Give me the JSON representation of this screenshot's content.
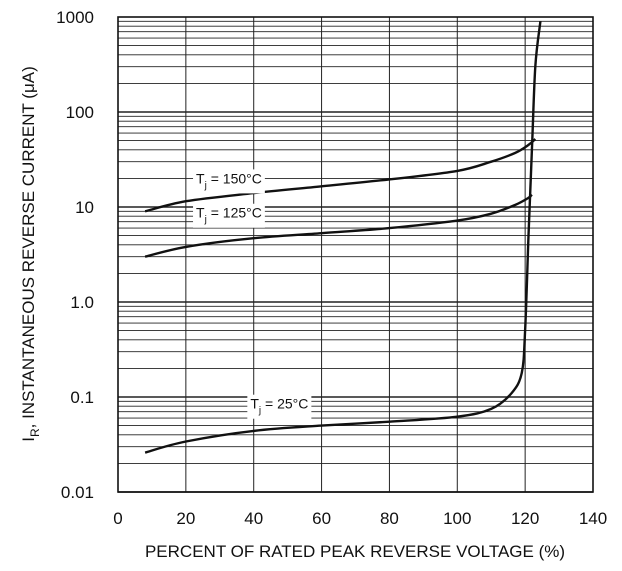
{
  "chart_data": {
    "type": "line",
    "title": "",
    "xlabel": "PERCENT OF RATED PEAK REVERSE VOLTAGE (%)",
    "ylabel_main": "I",
    "ylabel_sub": "R",
    "ylabel_rest": ", INSTANTANEOUS REVERSE CURRENT (μA)",
    "xlim": [
      0,
      140
    ],
    "ylim": [
      0.01,
      1000
    ],
    "yscale": "log",
    "grid": true,
    "x_ticks": [
      {
        "value": 0,
        "label": "0"
      },
      {
        "value": 20,
        "label": "20"
      },
      {
        "value": 40,
        "label": "40"
      },
      {
        "value": 60,
        "label": "60"
      },
      {
        "value": 80,
        "label": "80"
      },
      {
        "value": 100,
        "label": "100"
      },
      {
        "value": 120,
        "label": "120"
      },
      {
        "value": 140,
        "label": "140"
      }
    ],
    "y_ticks": [
      {
        "value": 0.01,
        "label": "0.01"
      },
      {
        "value": 0.1,
        "label": "0.1"
      },
      {
        "value": 1,
        "label": "1.0"
      },
      {
        "value": 10,
        "label": "10"
      },
      {
        "value": 100,
        "label": "100"
      },
      {
        "value": 1000,
        "label": "1000"
      }
    ],
    "series": [
      {
        "label_main": "T",
        "label_sub": "j",
        "label_rest": " = 150°C",
        "label_anchor": [
          23,
          20
        ],
        "x": [
          8,
          20,
          40,
          60,
          80,
          100,
          110,
          117,
          121,
          123
        ],
        "y": [
          9.0,
          11.5,
          14,
          16.5,
          19.5,
          24,
          30,
          37,
          45,
          52
        ]
      },
      {
        "label_main": "T",
        "label_sub": "j",
        "label_rest": " = 125°C",
        "label_anchor": [
          23,
          8.7
        ],
        "x": [
          8,
          20,
          40,
          60,
          80,
          100,
          110,
          117,
          121,
          122
        ],
        "y": [
          3.0,
          3.8,
          4.7,
          5.3,
          6.0,
          7.2,
          8.5,
          10.5,
          12.5,
          13.5
        ]
      },
      {
        "label_main": "T",
        "label_sub": "j",
        "label_rest": " = 25°C",
        "label_anchor": [
          39,
          0.085
        ],
        "x": [
          8,
          20,
          40,
          60,
          80,
          100,
          110,
          116,
          119,
          120,
          121,
          122,
          123,
          124.5
        ],
        "y": [
          0.026,
          0.034,
          0.044,
          0.05,
          0.055,
          0.062,
          0.075,
          0.11,
          0.18,
          0.5,
          5,
          40,
          300,
          900
        ]
      }
    ]
  }
}
